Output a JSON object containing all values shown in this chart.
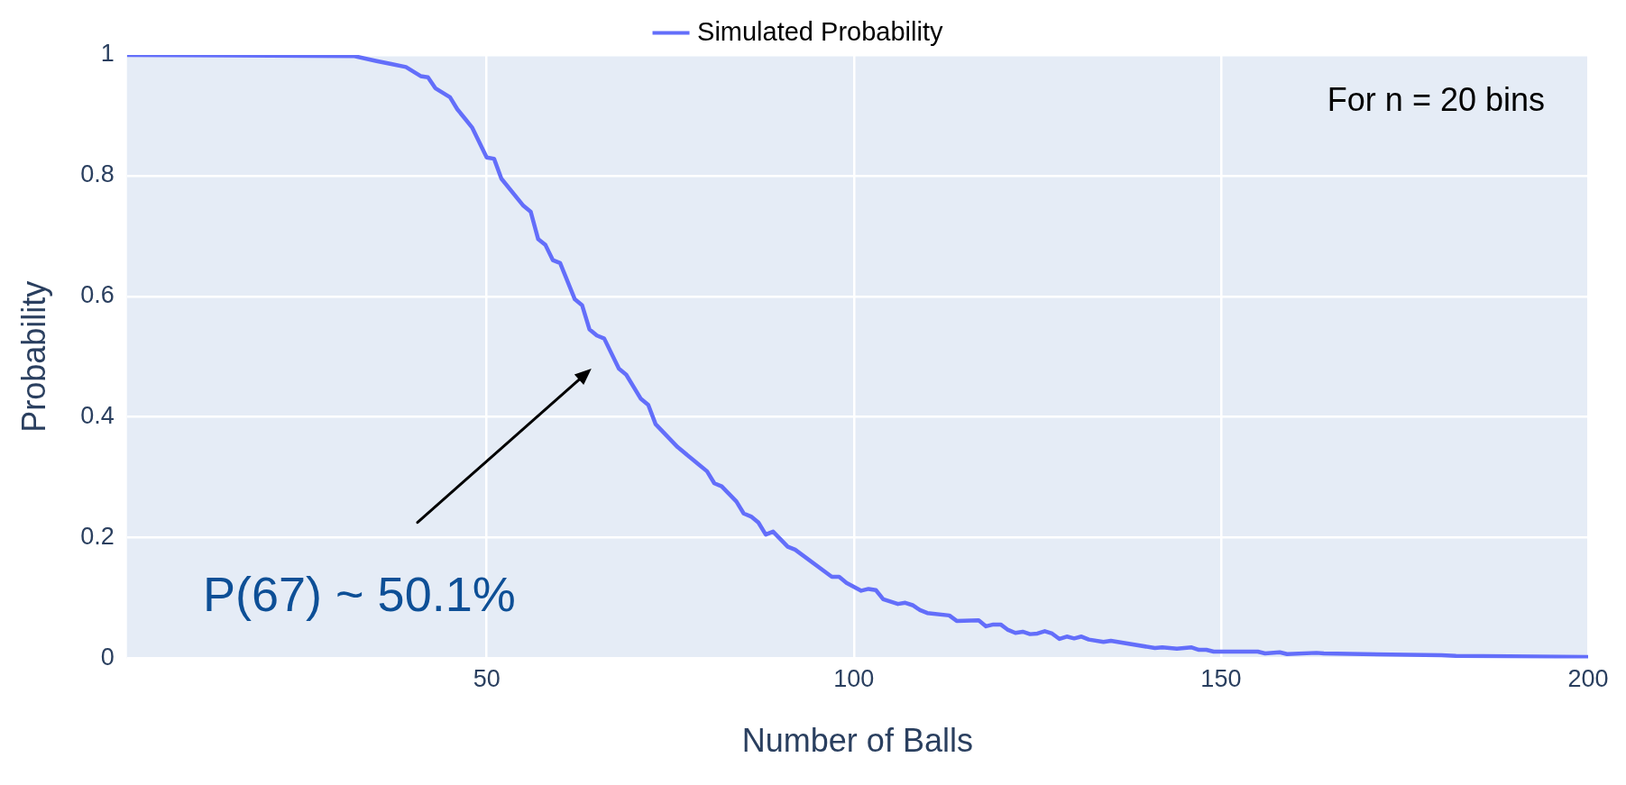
{
  "chart_data": {
    "type": "line",
    "xlabel": "Number of Balls",
    "ylabel": "Probability",
    "x": [
      1,
      32,
      35,
      37,
      39,
      41,
      42,
      43,
      45,
      46,
      47,
      48,
      50,
      51,
      52,
      55,
      56,
      57,
      58,
      59,
      60,
      62,
      63,
      64,
      65,
      66,
      68,
      69,
      71,
      72,
      73,
      76,
      79,
      80,
      81,
      82,
      84,
      85,
      86,
      87,
      88,
      89,
      91,
      92,
      97,
      98,
      99,
      101,
      102,
      103,
      104,
      106,
      107,
      108,
      109,
      110,
      113,
      114,
      117,
      118,
      119,
      120,
      121,
      122,
      123,
      124,
      125,
      126,
      127,
      128,
      129,
      130,
      131,
      132,
      134,
      135,
      141,
      142,
      144,
      146,
      147,
      148,
      149,
      155,
      156,
      158,
      159,
      163,
      164,
      180,
      182,
      200
    ],
    "series": [
      {
        "name": "Simulated Probability",
        "color": "#636efa",
        "values": [
          1,
          0.998,
          0.99,
          0.985,
          0.98,
          0.965,
          0.963,
          0.945,
          0.93,
          0.91,
          0.895,
          0.88,
          0.83,
          0.828,
          0.795,
          0.75,
          0.74,
          0.695,
          0.685,
          0.66,
          0.655,
          0.595,
          0.585,
          0.545,
          0.535,
          0.53,
          0.48,
          0.47,
          0.43,
          0.42,
          0.388,
          0.35,
          0.32,
          0.31,
          0.29,
          0.285,
          0.26,
          0.24,
          0.235,
          0.225,
          0.205,
          0.21,
          0.185,
          0.18,
          0.135,
          0.135,
          0.125,
          0.112,
          0.115,
          0.113,
          0.098,
          0.09,
          0.092,
          0.088,
          0.08,
          0.075,
          0.071,
          0.062,
          0.063,
          0.053,
          0.056,
          0.056,
          0.047,
          0.042,
          0.044,
          0.04,
          0.041,
          0.045,
          0.041,
          0.032,
          0.036,
          0.033,
          0.036,
          0.031,
          0.027,
          0.029,
          0.017,
          0.018,
          0.016,
          0.018,
          0.014,
          0.014,
          0.011,
          0.011,
          0.008,
          0.01,
          0.007,
          0.009,
          0.008,
          0.005,
          0.004,
          0.002
        ]
      }
    ],
    "xlim": [
      1,
      200
    ],
    "xticks": [
      50,
      100,
      150,
      200
    ],
    "ylim": [
      0,
      1
    ],
    "yticks": [
      0,
      0.2,
      0.4,
      0.6,
      0.8,
      1
    ],
    "grid": true,
    "legend": "top",
    "marker": "none",
    "line_style": "solid",
    "annotations": [
      "For n = 20 bins",
      "P(67) ~ 50.1%"
    ]
  }
}
